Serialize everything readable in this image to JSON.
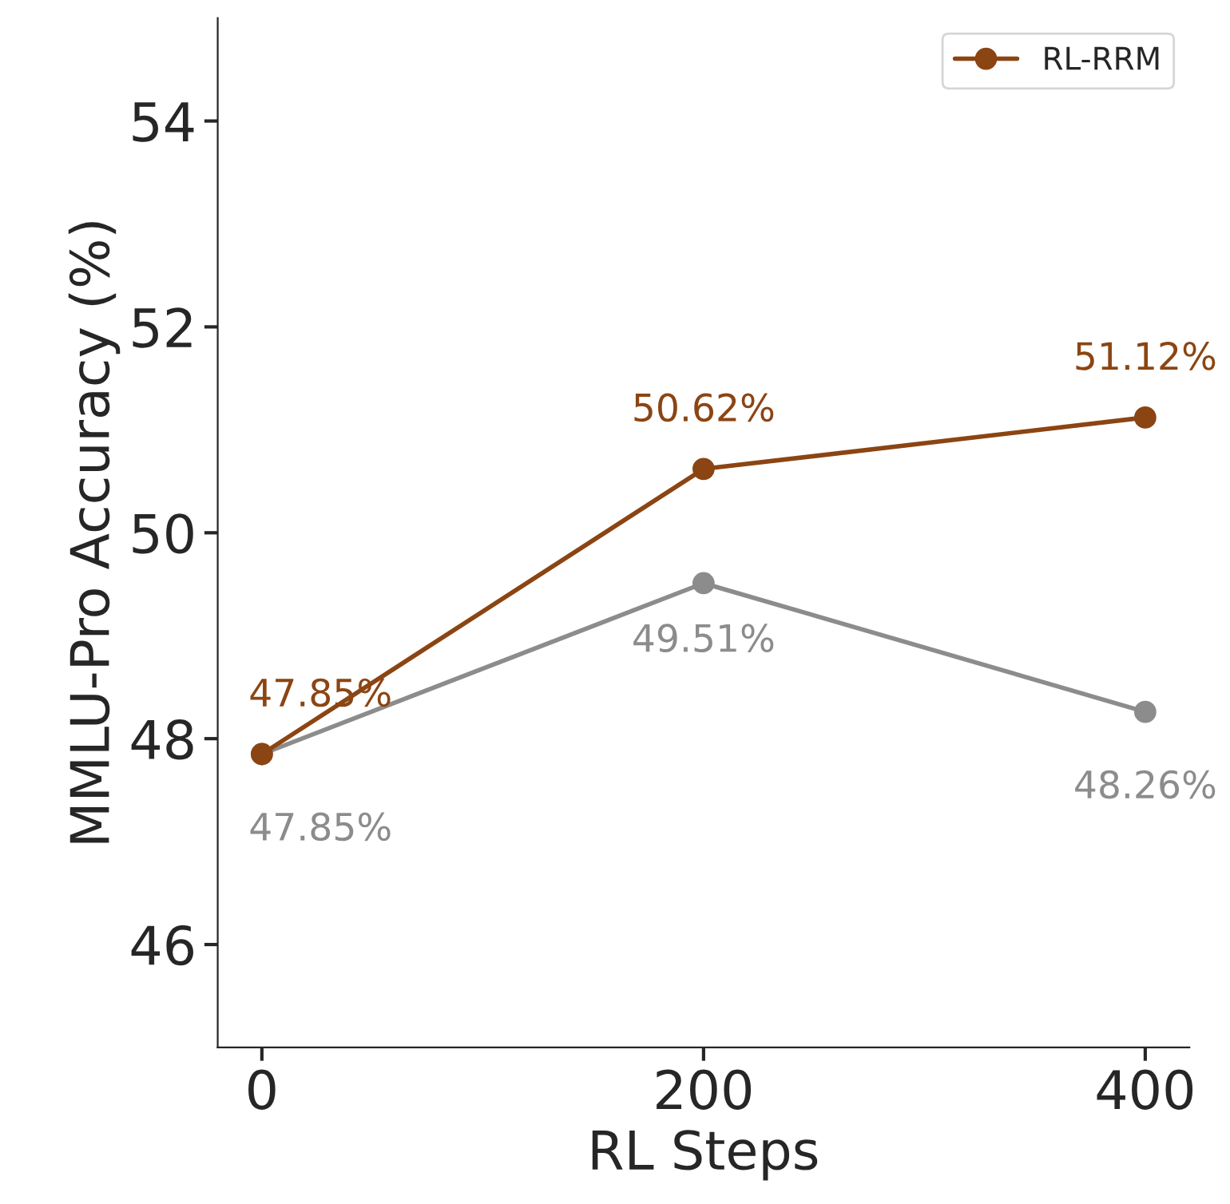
{
  "chart_data": {
    "type": "line",
    "xlabel": "RL Steps",
    "ylabel": "MMLU-Pro Accuracy (%)",
    "x": [
      0,
      200,
      400
    ],
    "xlim": [
      -20,
      420
    ],
    "xticks": [
      0,
      200,
      400
    ],
    "ylim": [
      45,
      55
    ],
    "yticks": [
      46,
      48,
      50,
      52,
      54
    ],
    "series": [
      {
        "color": "#8c8c8c",
        "values": [
          47.85,
          49.51,
          48.26
        ],
        "value_labels": [
          "47.85%",
          "49.51%",
          "48.26%"
        ]
      },
      {
        "name": "RL-RRM",
        "color": "#8b4513",
        "values": [
          47.85,
          50.62,
          51.12
        ],
        "value_labels": [
          "47.85%",
          "50.62%",
          "51.12%"
        ]
      }
    ],
    "marker": "circle",
    "line_style": "solid",
    "legend": "top right",
    "grid": false
  }
}
